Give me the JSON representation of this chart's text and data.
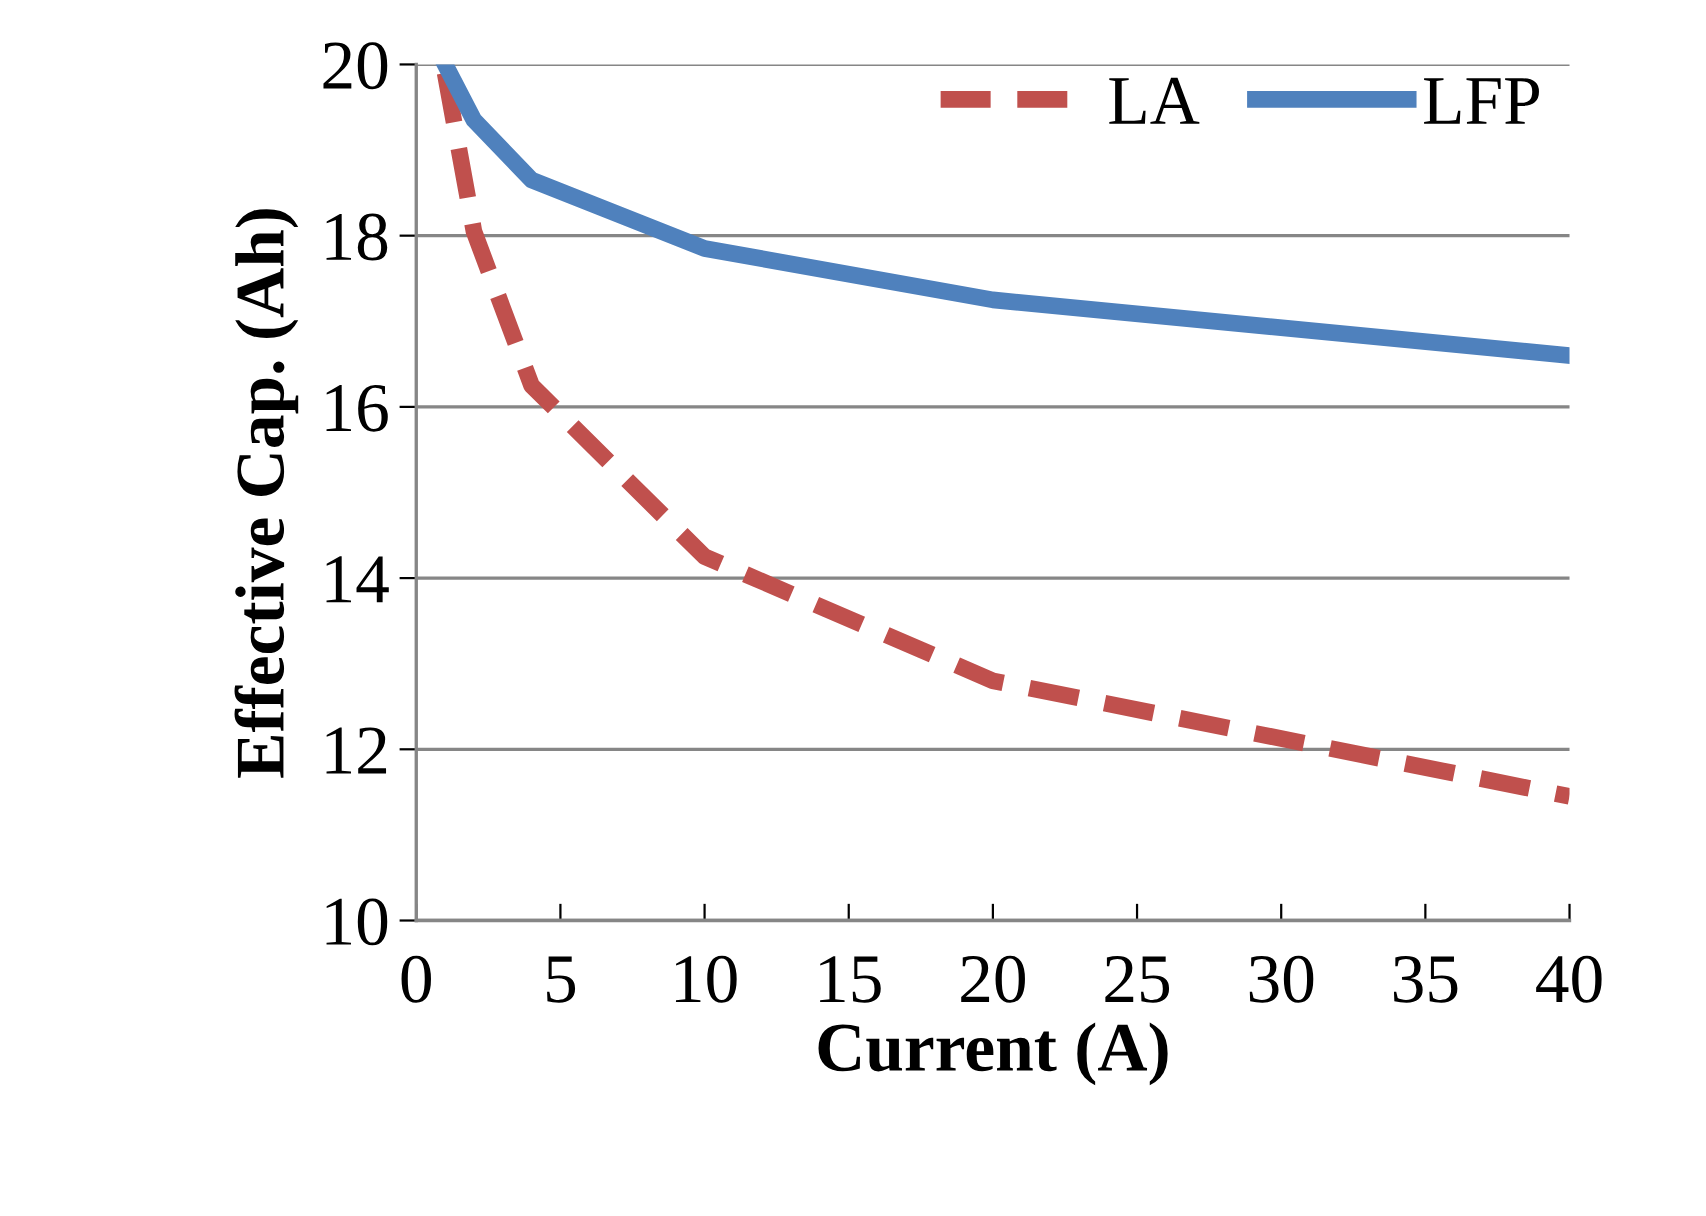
{
  "chart_data": {
    "type": "line",
    "xlabel": "Current (A)",
    "ylabel": "Effective Cap. (Ah)",
    "xlim": [
      0,
      40
    ],
    "xticks": [
      0,
      5,
      10,
      15,
      20,
      25,
      30,
      35,
      40
    ],
    "ylim": [
      10,
      20
    ],
    "yticks": [
      10,
      12,
      14,
      16,
      18,
      20
    ],
    "grid": "y",
    "legend": "top right",
    "marker": "none",
    "series": [
      {
        "name": "LA",
        "color": "#c0504d",
        "line_style": "dashed",
        "x": [
          1,
          2,
          4,
          10,
          20,
          40
        ],
        "values": [
          19.9,
          18.05,
          16.25,
          14.25,
          12.8,
          11.45
        ]
      },
      {
        "name": "LFP",
        "color": "#4f81bd",
        "line_style": "solid",
        "x": [
          1,
          2,
          4,
          10,
          20,
          40
        ],
        "values": [
          20.0,
          19.35,
          18.65,
          17.85,
          17.25,
          16.6
        ]
      }
    ]
  }
}
